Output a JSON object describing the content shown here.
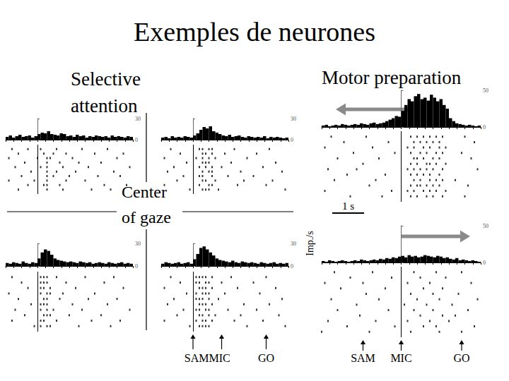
{
  "title": "Exemples de neurones",
  "headings": [
    "Selective attention",
    "Motor preparation"
  ],
  "center_label": "Center of gaze",
  "y_unit": "Imp./s",
  "scale_bar": {
    "label": "1 s",
    "length": 1
  },
  "events": {
    "attention": [
      {
        "label": "SAMMIC",
        "times": [
          0,
          0.9
        ]
      },
      {
        "label": "GO",
        "times": [
          2.3
        ]
      }
    ],
    "motor": [
      {
        "label": "SAM",
        "times": [
          -1.2
        ]
      },
      {
        "label": "MIC",
        "times": [
          0
        ]
      },
      {
        "label": "GO",
        "times": [
          1.9
        ]
      }
    ]
  },
  "chart_data": [
    {
      "type": "histogram",
      "bins": [
        -1.0,
        -0.9,
        -0.8,
        -0.7,
        -0.6,
        -0.5,
        -0.4,
        -0.3,
        -0.2,
        -0.1,
        0.0,
        0.1,
        0.2,
        0.3,
        0.4,
        0.5,
        0.6,
        0.7,
        0.8,
        0.9,
        1.0,
        1.1,
        1.2,
        1.3,
        1.4,
        1.5,
        1.6,
        1.7,
        1.8,
        1.9,
        2.0,
        2.1,
        2.2,
        2.3,
        2.4,
        2.5,
        2.6,
        2.7,
        2.8,
        2.9,
        3.0
      ],
      "values": [
        4,
        6,
        3,
        5,
        7,
        4,
        5,
        6,
        3,
        5,
        8,
        10,
        9,
        12,
        8,
        7,
        6,
        9,
        8,
        5,
        6,
        4,
        7,
        5,
        6,
        3,
        5,
        4,
        6,
        5,
        4,
        5,
        3,
        6,
        4,
        5,
        4,
        3,
        5,
        4
      ],
      "xlim": [
        -1,
        3
      ],
      "xticks": [
        -1,
        -0.75,
        -0.5,
        -0.25,
        0,
        0.25,
        0.5,
        0.75,
        1,
        1.25,
        1.5,
        1.75,
        2,
        2.25,
        2.5,
        2.75,
        3
      ],
      "ylim": [
        0,
        30
      ],
      "yticks": [
        0,
        30
      ],
      "tick_labels": "y",
      "color": "#000000",
      "event_time": 0,
      "raster": [
        [
          -0.8,
          -0.3,
          0.1,
          0.6,
          1.4,
          2.2
        ],
        [
          -0.6,
          0.2,
          0.5,
          0.9,
          1.8,
          2.7
        ],
        [
          -0.9,
          0.0,
          0.3,
          0.4,
          1.1,
          2.5
        ],
        [
          -0.4,
          0.3,
          0.7,
          1.3,
          2.0
        ],
        [
          -0.7,
          0.1,
          0.3,
          0.8,
          1.6,
          2.9
        ],
        [
          -0.2,
          0.3,
          0.6,
          1.2,
          2.4
        ],
        [
          -0.5,
          0.3,
          0.5,
          1.0,
          1.9,
          2.6
        ],
        [
          -0.9,
          -0.1,
          0.3,
          0.9,
          1.5
        ],
        [
          -0.3,
          0.2,
          0.3,
          0.7,
          2.1,
          2.8
        ],
        [
          -0.6,
          0.3,
          0.8,
          1.7,
          2.3
        ]
      ]
    },
    {
      "type": "histogram",
      "bins": [
        -1.0,
        -0.9,
        -0.8,
        -0.7,
        -0.6,
        -0.5,
        -0.4,
        -0.3,
        -0.2,
        -0.1,
        0.0,
        0.1,
        0.2,
        0.3,
        0.4,
        0.5,
        0.6,
        0.7,
        0.8,
        0.9,
        1.0,
        1.1,
        1.2,
        1.3,
        1.4,
        1.5,
        1.6,
        1.7,
        1.8,
        1.9,
        2.0,
        2.1,
        2.2,
        2.3,
        2.4,
        2.5,
        2.6,
        2.7,
        2.8,
        2.9,
        3.0
      ],
      "values": [
        3,
        4,
        2,
        5,
        3,
        4,
        3,
        5,
        4,
        3,
        6,
        9,
        14,
        18,
        16,
        19,
        12,
        10,
        8,
        6,
        5,
        7,
        4,
        5,
        6,
        4,
        3,
        5,
        4,
        3,
        4,
        3,
        5,
        2,
        4,
        3,
        4,
        3,
        2,
        3
      ],
      "xlim": [
        -1,
        3
      ],
      "xticks": [
        -1,
        -0.75,
        -0.5,
        -0.25,
        0,
        0.25,
        0.5,
        0.75,
        1,
        1.25,
        1.5,
        1.75,
        2,
        2.25,
        2.5,
        2.75,
        3
      ],
      "ylim": [
        0,
        30
      ],
      "yticks": [
        0,
        30
      ],
      "tick_labels": "y",
      "color": "#000000",
      "event_time": 0,
      "raster": [
        [
          -0.7,
          0.2,
          0.3,
          0.5,
          0.6,
          1.3,
          2.4
        ],
        [
          -0.4,
          0.3,
          0.4,
          0.6,
          1.0,
          2.0
        ],
        [
          -0.9,
          0.1,
          0.3,
          0.5,
          0.7,
          1.7
        ],
        [
          -0.2,
          0.3,
          0.4,
          0.5,
          1.2,
          2.6
        ],
        [
          -0.6,
          0.2,
          0.4,
          0.6,
          0.9,
          2.2
        ],
        [
          -0.8,
          0.3,
          0.5,
          0.6,
          1.5,
          2.8
        ],
        [
          -0.3,
          0.2,
          0.3,
          0.6,
          1.1,
          1.9
        ],
        [
          -0.5,
          0.3,
          0.4,
          0.7,
          1.6,
          2.5
        ],
        [
          -0.9,
          0.2,
          0.5,
          0.6,
          1.4,
          2.3
        ],
        [
          -0.1,
          0.3,
          0.4,
          0.5,
          0.8,
          2.9
        ]
      ]
    },
    {
      "type": "histogram",
      "bins": [
        -1.0,
        -0.9,
        -0.8,
        -0.7,
        -0.6,
        -0.5,
        -0.4,
        -0.3,
        -0.2,
        -0.1,
        0.0,
        0.1,
        0.2,
        0.3,
        0.4,
        0.5,
        0.6,
        0.7,
        0.8,
        0.9,
        1.0,
        1.1,
        1.2,
        1.3,
        1.4,
        1.5,
        1.6,
        1.7,
        1.8,
        1.9,
        2.0,
        2.1,
        2.2,
        2.3,
        2.4,
        2.5,
        2.6,
        2.7,
        2.8,
        2.9,
        3.0
      ],
      "values": [
        4,
        3,
        5,
        4,
        3,
        6,
        4,
        3,
        5,
        4,
        10,
        18,
        22,
        20,
        15,
        10,
        8,
        7,
        6,
        5,
        6,
        5,
        4,
        6,
        5,
        4,
        5,
        3,
        4,
        5,
        4,
        3,
        5,
        4,
        3,
        4,
        5,
        3,
        4,
        3
      ],
      "xlim": [
        -1,
        3
      ],
      "xticks": [
        -1,
        -0.75,
        -0.5,
        -0.25,
        0,
        0.25,
        0.5,
        0.75,
        1,
        1.25,
        1.5,
        1.75,
        2,
        2.25,
        2.5,
        2.75,
        3
      ],
      "ylim": [
        0,
        30
      ],
      "yticks": [
        0,
        30
      ],
      "tick_labels": "y",
      "color": "#000000",
      "event_time": 0,
      "raster": [
        [
          -0.8,
          0.1,
          0.2,
          0.3,
          0.6,
          1.5,
          2.4
        ],
        [
          -0.5,
          0.1,
          0.2,
          0.3,
          0.9,
          2.1
        ],
        [
          -0.3,
          0.1,
          0.2,
          0.4,
          1.2,
          2.7
        ],
        [
          -0.9,
          0.1,
          0.3,
          0.4,
          0.8,
          1.8
        ],
        [
          -0.6,
          0.2,
          0.3,
          0.7,
          1.6,
          2.5
        ],
        [
          -0.2,
          0.1,
          0.2,
          0.3,
          1.1,
          2.2
        ],
        [
          -0.7,
          0.1,
          0.3,
          0.5,
          1.4,
          2.9
        ],
        [
          -0.4,
          0.2,
          0.3,
          0.4,
          1.0,
          2.0
        ],
        [
          -0.8,
          0.1,
          0.2,
          0.6,
          1.7,
          2.6
        ],
        [
          -0.1,
          0.1,
          0.3,
          0.4,
          1.3,
          2.3
        ]
      ]
    },
    {
      "type": "histogram",
      "bins": [
        -1.0,
        -0.9,
        -0.8,
        -0.7,
        -0.6,
        -0.5,
        -0.4,
        -0.3,
        -0.2,
        -0.1,
        0.0,
        0.1,
        0.2,
        0.3,
        0.4,
        0.5,
        0.6,
        0.7,
        0.8,
        0.9,
        1.0,
        1.1,
        1.2,
        1.3,
        1.4,
        1.5,
        1.6,
        1.7,
        1.8,
        1.9,
        2.0,
        2.1,
        2.2,
        2.3,
        2.4,
        2.5,
        2.6,
        2.7,
        2.8,
        2.9,
        3.0
      ],
      "values": [
        3,
        5,
        4,
        3,
        4,
        5,
        3,
        4,
        5,
        3,
        9,
        16,
        24,
        26,
        22,
        18,
        14,
        10,
        8,
        7,
        6,
        5,
        7,
        5,
        4,
        6,
        5,
        4,
        5,
        4,
        3,
        5,
        4,
        3,
        4,
        5,
        3,
        4,
        3,
        4
      ],
      "xlim": [
        -1,
        3
      ],
      "xticks": [
        -1,
        -0.75,
        -0.5,
        -0.25,
        0,
        0.25,
        0.5,
        0.75,
        1,
        1.25,
        1.5,
        1.75,
        2,
        2.25,
        2.5,
        2.75,
        3
      ],
      "ylim": [
        0,
        30
      ],
      "yticks": [
        0,
        30
      ],
      "tick_labels": "y",
      "color": "#000000",
      "event_time": 0,
      "raster": [
        [
          -0.7,
          0.1,
          0.2,
          0.3,
          0.4,
          0.6,
          1.2,
          2.3
        ],
        [
          -0.4,
          0.1,
          0.2,
          0.4,
          0.5,
          0.9,
          1.9
        ],
        [
          -0.9,
          0.2,
          0.3,
          0.4,
          0.6,
          1.4,
          2.6
        ],
        [
          -0.2,
          0.1,
          0.3,
          0.4,
          0.5,
          1.0,
          2.1
        ],
        [
          -0.6,
          0.1,
          0.2,
          0.3,
          0.5,
          0.8,
          2.8
        ],
        [
          -0.8,
          0.2,
          0.3,
          0.4,
          0.6,
          1.6,
          2.4
        ],
        [
          -0.3,
          0.1,
          0.2,
          0.4,
          0.5,
          1.1,
          2.0
        ],
        [
          -0.5,
          0.2,
          0.3,
          0.5,
          0.7,
          1.5,
          2.7
        ],
        [
          -0.9,
          0.1,
          0.3,
          0.4,
          0.6,
          1.3,
          2.2
        ],
        [
          -0.1,
          0.2,
          0.3,
          0.4,
          0.5,
          1.7,
          2.9
        ]
      ]
    },
    {
      "type": "histogram",
      "bins": [
        -2.5,
        -2.4,
        -2.3,
        -2.2,
        -2.1,
        -2.0,
        -1.9,
        -1.8,
        -1.7,
        -1.6,
        -1.5,
        -1.4,
        -1.3,
        -1.2,
        -1.1,
        -1.0,
        -0.9,
        -0.8,
        -0.7,
        -0.6,
        -0.5,
        -0.4,
        -0.3,
        -0.2,
        -0.1,
        0.0,
        0.1,
        0.2,
        0.3,
        0.4,
        0.5,
        0.6,
        0.7,
        0.8,
        0.9,
        1.0,
        1.1,
        1.2,
        1.3,
        1.4,
        1.5,
        1.6,
        1.7,
        1.8,
        1.9,
        2.0,
        2.1,
        2.2,
        2.3,
        2.4,
        2.5
      ],
      "values": [
        2,
        3,
        1,
        2,
        3,
        2,
        4,
        3,
        2,
        3,
        4,
        3,
        5,
        4,
        3,
        5,
        6,
        4,
        5,
        6,
        8,
        10,
        12,
        15,
        14,
        22,
        30,
        38,
        35,
        42,
        45,
        38,
        40,
        36,
        44,
        40,
        35,
        38,
        30,
        25,
        12,
        8,
        5,
        4,
        3,
        2,
        3,
        2,
        1,
        2
      ],
      "xlim": [
        -2.5,
        2.5
      ],
      "xticks": [
        -2.5,
        -2.25,
        -2,
        -1.75,
        -1.5,
        -1.25,
        -1,
        -0.75,
        -0.5,
        -0.25,
        0,
        0.25,
        0.5,
        0.75,
        1,
        1.25,
        1.5,
        1.75,
        2,
        2.25,
        2.5
      ],
      "ylim": [
        0,
        50
      ],
      "yticks": [
        0,
        50
      ],
      "tick_labels": "y",
      "color": "#000000",
      "event_time": 0,
      "raster": [
        [
          -2.2,
          -1.1,
          0.3,
          0.5,
          0.7,
          0.9,
          1.1,
          1.3,
          2.0
        ],
        [
          -1.8,
          -0.4,
          0.4,
          0.6,
          0.8,
          1.0,
          1.2,
          2.3
        ],
        [
          -2.4,
          -0.9,
          0.2,
          0.4,
          0.7,
          0.9,
          1.2,
          1.4
        ],
        [
          -1.5,
          -0.2,
          0.3,
          0.6,
          0.8,
          1.1,
          1.3,
          1.9
        ],
        [
          -2.0,
          -0.7,
          0.4,
          0.5,
          0.7,
          1.0,
          1.2,
          2.2
        ],
        [
          -1.2,
          0.3,
          0.5,
          0.8,
          0.9,
          1.1,
          1.4
        ],
        [
          -2.3,
          -1.4,
          0.2,
          0.4,
          0.6,
          0.8,
          1.0,
          1.3,
          2.4
        ],
        [
          -1.7,
          -0.5,
          0.3,
          0.5,
          0.7,
          0.9,
          1.2
        ],
        [
          -2.1,
          -0.8,
          0.4,
          0.6,
          0.9,
          1.1,
          1.3,
          1.7
        ],
        [
          -1.0,
          0.3,
          0.5,
          0.6,
          0.8,
          1.0,
          1.2,
          2.1
        ],
        [
          -2.4,
          -0.3,
          0.2,
          0.4,
          0.7,
          0.9,
          1.1,
          1.4
        ],
        [
          -1.6,
          -0.6,
          0.3,
          0.5,
          0.8,
          1.0,
          1.3,
          2.0
        ]
      ]
    },
    {
      "type": "histogram",
      "bins": [
        -2.5,
        -2.4,
        -2.3,
        -2.2,
        -2.1,
        -2.0,
        -1.9,
        -1.8,
        -1.7,
        -1.6,
        -1.5,
        -1.4,
        -1.3,
        -1.2,
        -1.1,
        -1.0,
        -0.9,
        -0.8,
        -0.7,
        -0.6,
        -0.5,
        -0.4,
        -0.3,
        -0.2,
        -0.1,
        0.0,
        0.1,
        0.2,
        0.3,
        0.4,
        0.5,
        0.6,
        0.7,
        0.8,
        0.9,
        1.0,
        1.1,
        1.2,
        1.3,
        1.4,
        1.5,
        1.6,
        1.7,
        1.8,
        1.9,
        2.0,
        2.1,
        2.2,
        2.3,
        2.4,
        2.5
      ],
      "values": [
        2,
        1,
        3,
        2,
        1,
        2,
        3,
        2,
        1,
        2,
        3,
        2,
        4,
        3,
        2,
        3,
        4,
        3,
        5,
        4,
        6,
        5,
        7,
        6,
        8,
        9,
        7,
        10,
        8,
        9,
        7,
        8,
        10,
        9,
        8,
        7,
        9,
        8,
        6,
        7,
        5,
        4,
        6,
        3,
        4,
        3,
        2,
        3,
        2,
        1
      ],
      "xlim": [
        -2.5,
        2.5
      ],
      "xticks": [
        -2.5,
        -2.25,
        -2,
        -1.75,
        -1.5,
        -1.25,
        -1,
        -0.75,
        -0.5,
        -0.25,
        0,
        0.25,
        0.5,
        0.75,
        1,
        1.25,
        1.5,
        1.75,
        2,
        2.25,
        2.5
      ],
      "ylim": [
        0,
        50
      ],
      "yticks": [
        0,
        50
      ],
      "tick_labels": "y",
      "color": "#000000",
      "event_time": 0,
      "raster": [
        [
          -2.1,
          -0.9,
          0.4,
          1.1,
          1.9
        ],
        [
          -1.6,
          -0.3,
          0.6,
          1.4
        ],
        [
          -2.4,
          -1.2,
          0.2,
          0.9,
          2.2
        ],
        [
          -1.9,
          -0.5,
          0.7,
          1.3
        ],
        [
          -1.1,
          0.3,
          1.0,
          1.8
        ],
        [
          -2.2,
          -0.7,
          0.5,
          1.2,
          2.4
        ],
        [
          -1.4,
          0.1,
          0.8,
          1.6
        ],
        [
          -2.0,
          -0.4,
          0.4,
          1.0,
          2.1
        ],
        [
          -1.3,
          0.6,
          1.3,
          1.7
        ],
        [
          -2.3,
          -0.8,
          0.2,
          0.9,
          1.5
        ],
        [
          -1.7,
          -0.2,
          0.7,
          1.1,
          2.3
        ],
        [
          -2.5,
          -1.0,
          0.3,
          1.2,
          1.9
        ]
      ]
    }
  ]
}
